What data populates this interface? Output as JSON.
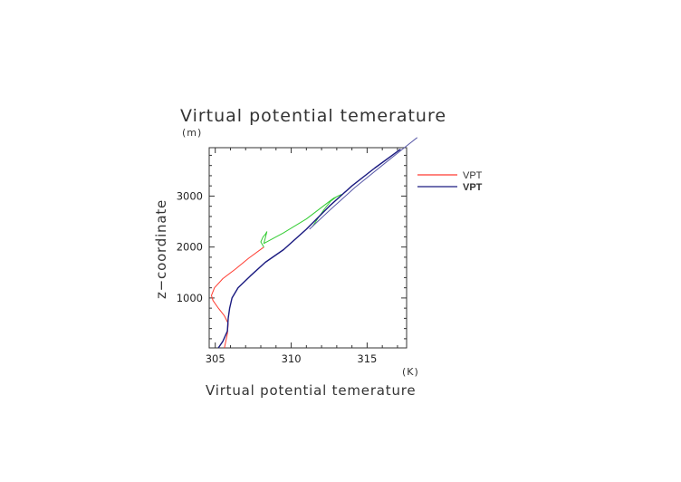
{
  "chart_data": {
    "type": "line",
    "title": "Virtual potential temerature",
    "xlabel": "Virtual potential temerature",
    "ylabel": "z−coordinate",
    "xunit": "(K)",
    "yunit": "(m)",
    "xlim": [
      304.6,
      317.6
    ],
    "ylim": [
      20,
      3950
    ],
    "xticks": [
      305,
      310,
      315
    ],
    "yticks": [
      1000,
      2000,
      3000
    ],
    "grid": false,
    "legend_position": "right",
    "series": [
      {
        "name": "VPT",
        "color": "#ff3b30",
        "points": [
          [
            305.6,
            20
          ],
          [
            305.8,
            300
          ],
          [
            305.85,
            500
          ],
          [
            305.6,
            650
          ],
          [
            305.2,
            800
          ],
          [
            304.85,
            950
          ],
          [
            304.75,
            1050
          ],
          [
            304.95,
            1200
          ],
          [
            305.5,
            1380
          ],
          [
            306.3,
            1560
          ],
          [
            307.2,
            1780
          ],
          [
            308.2,
            2000
          ]
        ]
      },
      {
        "name": "",
        "color": "#33cc33",
        "points": [
          [
            308.2,
            2000
          ],
          [
            308.0,
            2100
          ],
          [
            308.15,
            2200
          ],
          [
            308.3,
            2250
          ],
          [
            308.4,
            2300
          ],
          [
            308.2,
            2070
          ],
          [
            309.5,
            2280
          ],
          [
            311.0,
            2550
          ],
          [
            312.8,
            2960
          ],
          [
            313.3,
            3030
          ],
          [
            313.0,
            2990
          ],
          [
            312.6,
            2900
          ],
          [
            312.2,
            2750
          ],
          [
            311.8,
            2580
          ],
          [
            311.4,
            2400
          ]
        ]
      },
      {
        "name": "VPT",
        "color": "#1a1a80",
        "points": [
          [
            305.2,
            20
          ],
          [
            305.5,
            150
          ],
          [
            305.8,
            350
          ],
          [
            305.85,
            600
          ],
          [
            305.95,
            800
          ],
          [
            306.1,
            1000
          ],
          [
            306.5,
            1200
          ],
          [
            307.3,
            1430
          ],
          [
            308.3,
            1700
          ],
          [
            309.5,
            1950
          ],
          [
            311.0,
            2350
          ],
          [
            312.5,
            2800
          ],
          [
            314.0,
            3200
          ],
          [
            315.5,
            3550
          ],
          [
            317.2,
            3920
          ]
        ]
      },
      {
        "name": "",
        "color": "#5a5aa8",
        "points": [
          [
            311.2,
            2350
          ],
          [
            312.6,
            2740
          ],
          [
            314.2,
            3170
          ],
          [
            315.9,
            3580
          ],
          [
            317.5,
            3960
          ],
          [
            318.3,
            4150
          ]
        ]
      }
    ]
  }
}
